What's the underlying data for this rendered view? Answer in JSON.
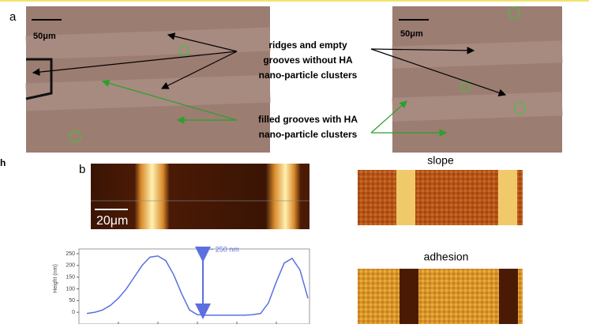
{
  "panel_a": {
    "label": "a",
    "scale_bars": [
      "50μm",
      "50μm"
    ],
    "annotation_empty": [
      "ridges and empty",
      "grooves without HA",
      "nano-particle clusters"
    ],
    "annotation_filled": [
      "filled grooves with HA",
      "nano-particle clusters"
    ]
  },
  "edge_label": "h",
  "panel_b": {
    "label": "b",
    "scale_bar": "20μm",
    "slope_title": "slope",
    "adhesion_title": "adhesion",
    "profile": {
      "type": "line",
      "ylabel": "Height (nm)",
      "annotation": "~ 250 nm",
      "color": "#5b6fe0",
      "ylim": [
        -50,
        270
      ],
      "yticks": [
        0,
        50,
        100,
        150,
        200,
        250
      ],
      "values": [
        -5,
        0,
        10,
        30,
        60,
        100,
        150,
        200,
        235,
        240,
        220,
        160,
        80,
        10,
        -10,
        -12,
        -12,
        -12,
        -12,
        -12,
        -12,
        -10,
        -5,
        40,
        130,
        210,
        230,
        180,
        60
      ]
    }
  }
}
